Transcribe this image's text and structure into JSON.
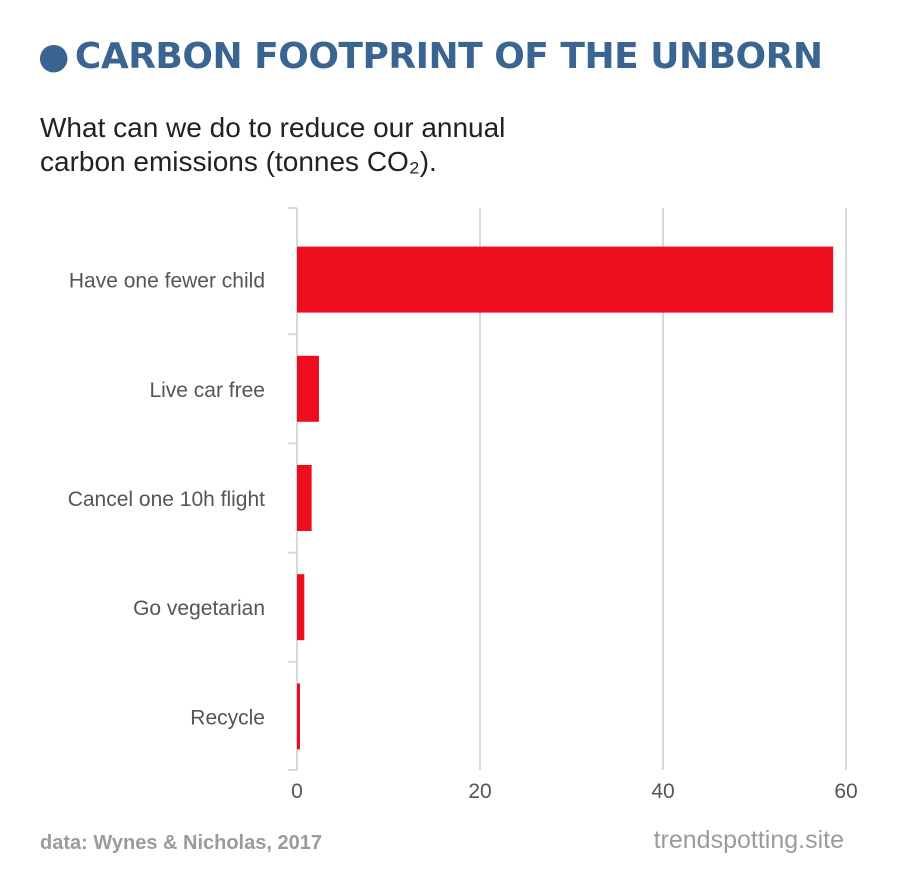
{
  "header": {
    "bullet": "●",
    "title": "CARBON FOOTPRINT OF THE UNBORN",
    "subtitle_line1": "What can we do to reduce our annual",
    "subtitle_line2": "carbon emissions (tonnes CO₂)."
  },
  "footer": {
    "source": "data: Wynes & Nicholas, 2017",
    "site": "trendspotting.site"
  },
  "colors": {
    "title": "#3a6591",
    "bar": "#ee0d1e",
    "grid": "#d9d9d9",
    "label": "#555555",
    "footer": "#9b9b9b"
  },
  "chart_data": {
    "type": "bar",
    "orientation": "horizontal",
    "categories": [
      "Have one fewer child",
      "Live car free",
      "Cancel one 10h flight",
      "Go vegetarian",
      "Recycle"
    ],
    "values": [
      58.6,
      2.4,
      1.6,
      0.8,
      0.2
    ],
    "title": "CARBON FOOTPRINT OF THE UNBORN",
    "subtitle": "What can we do to reduce our annual carbon emissions (tonnes CO₂).",
    "xlabel": "",
    "ylabel": "",
    "xlim": [
      0,
      60
    ],
    "xticks": [
      0,
      20,
      40,
      60
    ],
    "grid": true,
    "legend": "none"
  }
}
